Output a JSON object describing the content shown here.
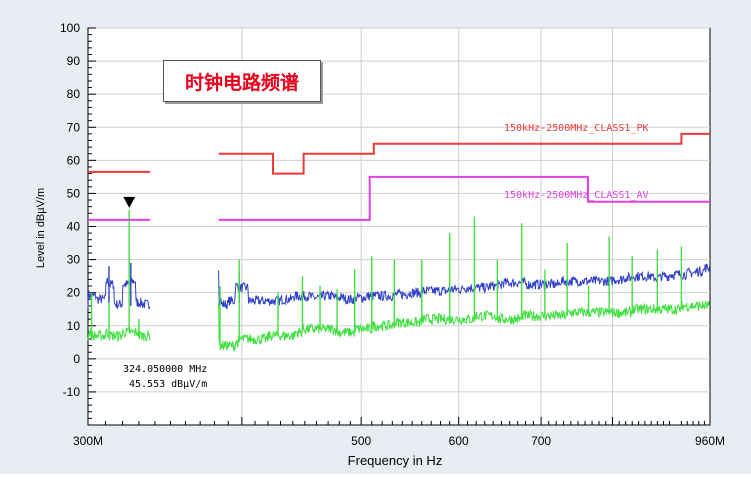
{
  "chart_data": {
    "type": "line",
    "title": "时钟电路频谱",
    "xlabel": "Frequency in Hz",
    "ylabel": "Level in dBµV/m",
    "xscale": "log",
    "xlim": [
      300,
      960
    ],
    "ylim": [
      -20,
      100
    ],
    "y_ticks": [
      "100",
      "90",
      "80",
      "70",
      "60",
      "50",
      "40",
      "30",
      "20",
      "10",
      "0",
      "-10"
    ],
    "x_ticks": [
      {
        "value": 300,
        "label": "300M"
      },
      {
        "value": 400,
        "label": ""
      },
      {
        "value": 500,
        "label": "500"
      },
      {
        "value": 600,
        "label": "600"
      },
      {
        "value": 700,
        "label": "700"
      },
      {
        "value": 800,
        "label": ""
      },
      {
        "value": 960,
        "label": "960M"
      }
    ],
    "grid": true,
    "limit_lines": [
      {
        "name": "150kHz-2500MHz_CLASS1_PK",
        "color": "#ee3a3a",
        "segments": [
          [
            [
              300,
              56.5
            ],
            [
              337,
              56.5
            ]
          ],
          [
            [
              383,
              62
            ],
            [
              424,
              62
            ],
            [
              424,
              56
            ],
            [
              449,
              56
            ],
            [
              449,
              62
            ],
            [
              512,
              62
            ],
            [
              512,
              65
            ],
            [
              910,
              65
            ],
            [
              910,
              68
            ],
            [
              960,
              68
            ]
          ]
        ]
      },
      {
        "name": "150kHz-2500MHz_CLASS1_AV",
        "color": "#e040e0",
        "segments": [
          [
            [
              300,
              42
            ],
            [
              337,
              42
            ]
          ],
          [
            [
              383,
              42
            ],
            [
              508,
              42
            ],
            [
              508,
              55
            ],
            [
              764,
              55
            ],
            [
              764,
              47.5
            ],
            [
              960,
              47.5
            ]
          ]
        ]
      }
    ],
    "series": [
      {
        "name": "",
        "color": "#3040c8",
        "x": [
          300,
          301,
          305,
          310,
          312,
          315,
          320,
          325,
          328,
          332,
          337
        ],
        "values": [
          18,
          21,
          17,
          19,
          28,
          17,
          16,
          29,
          18,
          16,
          17
        ],
        "x2": [
          383,
          385,
          390,
          395,
          398,
          405,
          415,
          420,
          430,
          440,
          448,
          455,
          465,
          475,
          485,
          495,
          505,
          515,
          530,
          545,
          560,
          575,
          590,
          605,
          620,
          635,
          650,
          665,
          680,
          695,
          710,
          725,
          740,
          755,
          770,
          785,
          800,
          815,
          830,
          845,
          860,
          875,
          890,
          905,
          920,
          935,
          950,
          960
        ],
        "values2": [
          19,
          16,
          17,
          18,
          26,
          17,
          18,
          17,
          18,
          18,
          20,
          18,
          19,
          19,
          18,
          18,
          19,
          19,
          19,
          20,
          20,
          21,
          20,
          22,
          21,
          22,
          22,
          24,
          22,
          23,
          22,
          23,
          24,
          23,
          24,
          23,
          24,
          24,
          25,
          25,
          25,
          24,
          26,
          25,
          26,
          26,
          27,
          28
        ]
      },
      {
        "name": "",
        "color": "#40e040",
        "x": [
          300,
          302,
          305,
          310,
          312,
          316,
          320,
          324,
          326,
          330,
          334,
          337
        ],
        "values": [
          8,
          20,
          7,
          8,
          17,
          7,
          8,
          45,
          8,
          12,
          7,
          7
        ],
        "x2": [
          383,
          384,
          390,
          395,
          398,
          403,
          410,
          420,
          428,
          435,
          442,
          448,
          456,
          463,
          470,
          478,
          486,
          494,
          502,
          510,
          520,
          532,
          545,
          560,
          575,
          590,
          604,
          618,
          630,
          645,
          660,
          675,
          690,
          705,
          720,
          735,
          750,
          765,
          780,
          795,
          810,
          830,
          850,
          870,
          890,
          910,
          930,
          960
        ],
        "values2": [
          6,
          22,
          4,
          5,
          30,
          6,
          6,
          7,
          20,
          7,
          8,
          25,
          9,
          22,
          9,
          21,
          8,
          27,
          9,
          31,
          10,
          30,
          11,
          30,
          12,
          38,
          12,
          43,
          13,
          30,
          12,
          41,
          13,
          27,
          13,
          35,
          14,
          22,
          14,
          37,
          14,
          31,
          15,
          33,
          15,
          34,
          16,
          17
        ]
      }
    ],
    "marker": {
      "x": 324.05,
      "y": 42,
      "text_line1": "324.050000 MHz",
      "text_line2": "45.553 dBµV/m"
    }
  }
}
